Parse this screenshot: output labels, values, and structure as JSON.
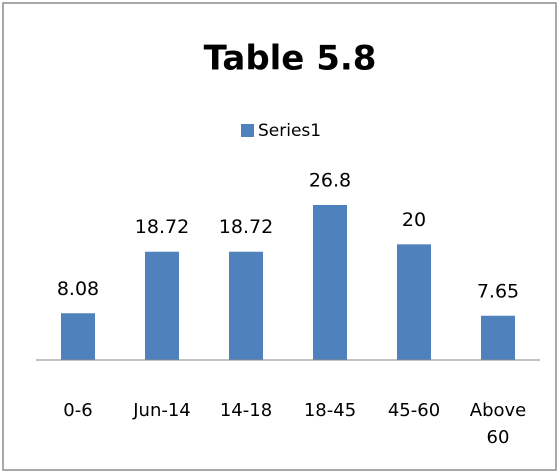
{
  "chart_data": {
    "type": "bar",
    "title": "Table 5.8",
    "categories": [
      "0-6",
      "Jun-14",
      "14-18",
      "18-45",
      "45-60",
      "Above 60"
    ],
    "series": [
      {
        "name": "Series1",
        "color": "#4f81bd",
        "values": [
          8.08,
          18.72,
          18.72,
          26.8,
          20,
          7.65
        ]
      }
    ],
    "legend": "top"
  }
}
